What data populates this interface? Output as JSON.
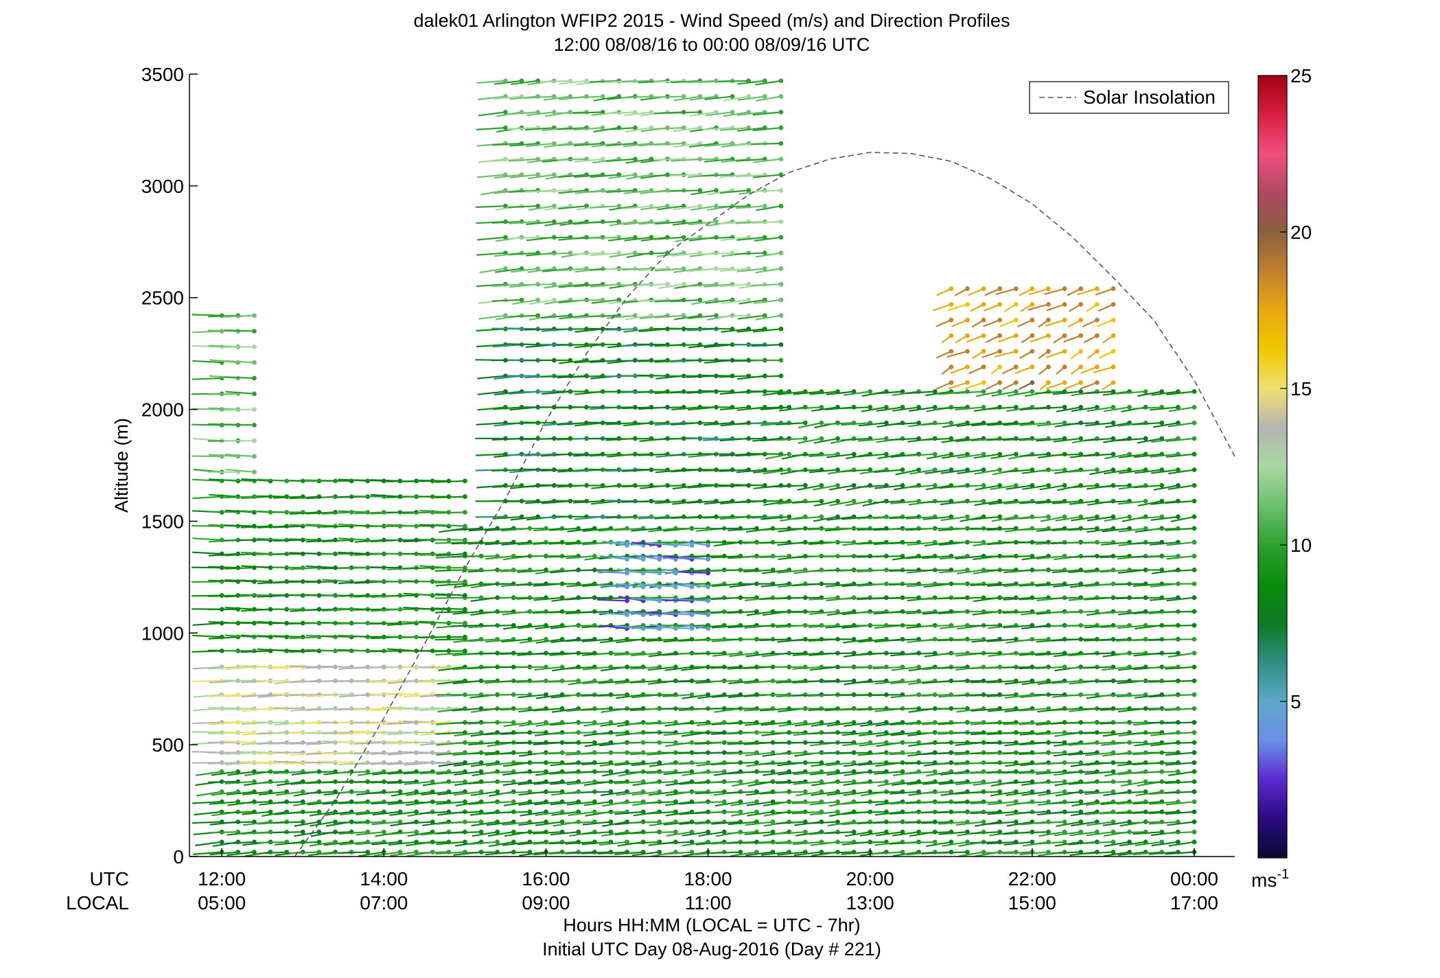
{
  "chart_data": {
    "type": "wind-barb-profile",
    "title_line1": "dalek01 Arlington WFIP2 2015 - Wind Speed (m/s) and Direction Profiles",
    "title_line2": "12:00 08/08/16 to 00:00 08/09/16  UTC",
    "ylabel": "Altitude (m)",
    "ylim": [
      0,
      3500
    ],
    "yticks": [
      "0",
      "500",
      "1000",
      "1500",
      "2000",
      "2500",
      "3000",
      "3500"
    ],
    "xlim_hours_utc": [
      11.6,
      24.5
    ],
    "utc_row_label": "UTC",
    "local_row_label": "LOCAL",
    "utc_ticks": [
      "12:00",
      "14:00",
      "16:00",
      "18:00",
      "20:00",
      "22:00",
      "00:00"
    ],
    "local_ticks": [
      "05:00",
      "07:00",
      "09:00",
      "11:00",
      "13:00",
      "15:00",
      "17:00"
    ],
    "xlabel_line1": "Hours HH:MM  (LOCAL = UTC - 7hr)",
    "xlabel_line2": "Initial UTC Day 08-Aug-2016 (Day # 221)",
    "legend": {
      "entry": "Solar Insolation",
      "style": "dashed",
      "placement": "top-right"
    },
    "colorbar": {
      "min": 0,
      "max": 25,
      "ticks": [
        "5",
        "10",
        "15",
        "20",
        "25"
      ],
      "unit_label": "ms",
      "unit_exponent": "-1",
      "colors": [
        "#0a0a33",
        "#2a0a80",
        "#5a2ad0",
        "#6a8fe8",
        "#5fa8c8",
        "#2e8f82",
        "#0e7a24",
        "#0a8c0a",
        "#2fa02f",
        "#6cc06c",
        "#a8d8a0",
        "#b4b4b4",
        "#f0e070",
        "#f0c800",
        "#e8a810",
        "#c08030",
        "#8a6040",
        "#b04860",
        "#f05080",
        "#d82040",
        "#a00010"
      ]
    },
    "solar_insolation_curve": [
      [
        12.9,
        0
      ],
      [
        13.4,
        250
      ],
      [
        14.0,
        620
      ],
      [
        14.5,
        950
      ],
      [
        15.0,
        1290
      ],
      [
        15.5,
        1600
      ],
      [
        16.0,
        1950
      ],
      [
        16.5,
        2250
      ],
      [
        17.0,
        2500
      ],
      [
        17.5,
        2700
      ],
      [
        18.0,
        2830
      ],
      [
        18.5,
        2960
      ],
      [
        19.0,
        3060
      ],
      [
        19.5,
        3120
      ],
      [
        20.0,
        3150
      ],
      [
        20.5,
        3145
      ],
      [
        21.0,
        3110
      ],
      [
        21.5,
        3030
      ],
      [
        22.0,
        2920
      ],
      [
        22.5,
        2770
      ],
      [
        23.0,
        2590
      ],
      [
        23.5,
        2400
      ],
      [
        24.0,
        2130
      ],
      [
        24.5,
        1790
      ]
    ],
    "wind_profiles": [
      {
        "time_range_utc": [
          12.0,
          24.0
        ],
        "alt_range_m": [
          0,
          400
        ],
        "speed_ms": 9,
        "dir_deg": 250
      },
      {
        "time_range_utc": [
          12.0,
          15.0
        ],
        "alt_range_m": [
          400,
          900
        ],
        "speed_ms": 14,
        "dir_deg": 265
      },
      {
        "time_range_utc": [
          15.0,
          24.0
        ],
        "alt_range_m": [
          400,
          1500
        ],
        "speed_ms": 9,
        "dir_deg": 255
      },
      {
        "time_range_utc": [
          12.0,
          15.0
        ],
        "alt_range_m": [
          900,
          1700
        ],
        "speed_ms": 9,
        "dir_deg": 270
      },
      {
        "time_range_utc": [
          12.0,
          12.5
        ],
        "alt_range_m": [
          1700,
          2470
        ],
        "speed_ms": 11,
        "dir_deg": 275
      },
      {
        "time_range_utc": [
          15.5,
          19.0
        ],
        "alt_range_m": [
          1500,
          2400
        ],
        "speed_ms": 8,
        "dir_deg": 260
      },
      {
        "time_range_utc": [
          15.5,
          19.0
        ],
        "alt_range_m": [
          2400,
          3500
        ],
        "speed_ms": 11,
        "dir_deg": 250
      },
      {
        "time_range_utc": [
          19.0,
          24.0
        ],
        "alt_range_m": [
          1500,
          2100
        ],
        "speed_ms": 9,
        "dir_deg": 245
      },
      {
        "time_range_utc": [
          21.0,
          23.0
        ],
        "alt_range_m": [
          2100,
          2600
        ],
        "speed_ms": 18,
        "dir_deg": 210
      },
      {
        "time_range_utc": [
          17.0,
          18.0
        ],
        "alt_range_m": [
          1000,
          1400
        ],
        "speed_ms": 4,
        "dir_deg": 290
      }
    ]
  }
}
